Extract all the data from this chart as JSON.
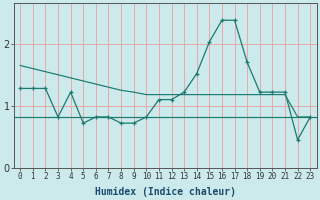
{
  "xlabel": "Humidex (Indice chaleur)",
  "background_color": "#cceaec",
  "line_color": "#1a7a6e",
  "grid_color": "#e8a8a8",
  "xlim": [
    -0.5,
    23.5
  ],
  "ylim": [
    0,
    2.65
  ],
  "yticks": [
    0,
    1,
    2
  ],
  "xticks": [
    0,
    1,
    2,
    3,
    4,
    5,
    6,
    7,
    8,
    9,
    10,
    11,
    12,
    13,
    14,
    15,
    16,
    17,
    18,
    19,
    20,
    21,
    22,
    23
  ],
  "jagged_x": [
    0,
    1,
    2,
    3,
    4,
    5,
    6,
    7,
    8,
    9,
    10,
    11,
    12,
    13,
    14,
    15,
    16,
    17,
    18,
    19,
    20,
    21,
    22,
    23
  ],
  "jagged_y": [
    1.28,
    1.28,
    1.28,
    0.82,
    1.22,
    0.72,
    0.82,
    0.82,
    0.72,
    0.72,
    0.82,
    1.1,
    1.1,
    1.22,
    1.52,
    2.03,
    2.38,
    2.38,
    1.7,
    1.22,
    1.22,
    1.22,
    0.45,
    0.82
  ],
  "trend_x": [
    0,
    1,
    2,
    3,
    4,
    5,
    6,
    7,
    8,
    9,
    10,
    11,
    12,
    13,
    14,
    15,
    16,
    17,
    18,
    19,
    20,
    21,
    22,
    23
  ],
  "trend_y": [
    1.65,
    1.6,
    1.55,
    1.5,
    1.45,
    1.4,
    1.35,
    1.3,
    1.25,
    1.22,
    1.18,
    1.18,
    1.18,
    1.18,
    1.18,
    1.18,
    1.18,
    1.18,
    1.18,
    1.18,
    1.18,
    1.18,
    0.82,
    0.82
  ],
  "hline_y": 0.82
}
